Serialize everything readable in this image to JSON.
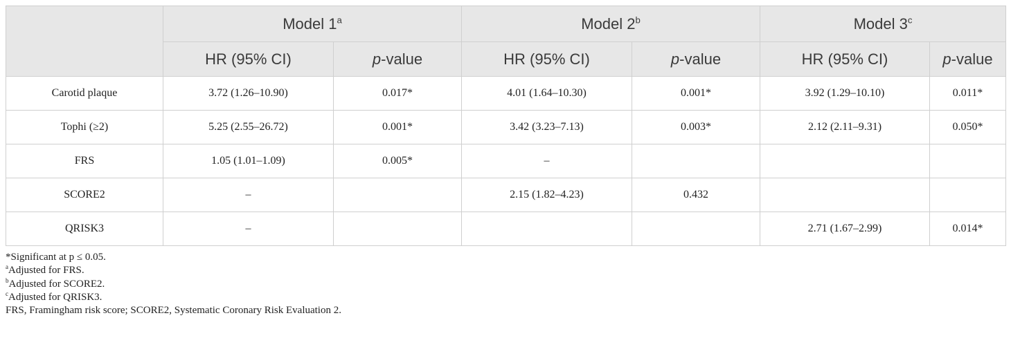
{
  "header": {
    "models": [
      {
        "label": "Model 1",
        "note": "a"
      },
      {
        "label": "Model 2",
        "note": "b"
      },
      {
        "label": "Model 3",
        "note": "c"
      }
    ],
    "subheaders": [
      "HR (95% CI)",
      {
        "italic": "p",
        "text": "-value"
      },
      "HR (95% CI)",
      {
        "italic": "p",
        "text": "-value"
      },
      "HR (95% CI)",
      {
        "italic": "p",
        "text": "-value"
      }
    ]
  },
  "table": {
    "rows": [
      [
        "Carotid plaque",
        "3.72 (1.26–10.90)",
        "0.017*",
        "4.01 (1.64–10.30)",
        "0.001*",
        "3.92 (1.29–10.10)",
        "0.011*"
      ],
      [
        "Tophi (≥2)",
        "5.25 (2.55–26.72)",
        "0.001*",
        "3.42 (3.23–7.13)",
        "0.003*",
        "2.12 (2.11–9.31)",
        "0.050*"
      ],
      [
        "FRS",
        "1.05 (1.01–1.09)",
        "0.005*",
        "–",
        null,
        null,
        null
      ],
      [
        "SCORE2",
        "–",
        null,
        "2.15 (1.82–4.23)",
        "0.432",
        null,
        null
      ],
      [
        "QRISK3",
        "–",
        null,
        null,
        null,
        "2.71 (1.67–2.99)",
        "0.014*"
      ]
    ]
  },
  "footnotes": [
    {
      "text": "*Significant at p ≤ 0.05."
    },
    {
      "sup": "a",
      "text": "Adjusted for FRS."
    },
    {
      "sup": "b",
      "text": "Adjusted for SCORE2."
    },
    {
      "sup": "c",
      "text": "Adjusted for QRISK3."
    },
    {
      "text": "FRS, Framingham risk score; SCORE2, Systematic Coronary Risk Evaluation 2."
    }
  ]
}
